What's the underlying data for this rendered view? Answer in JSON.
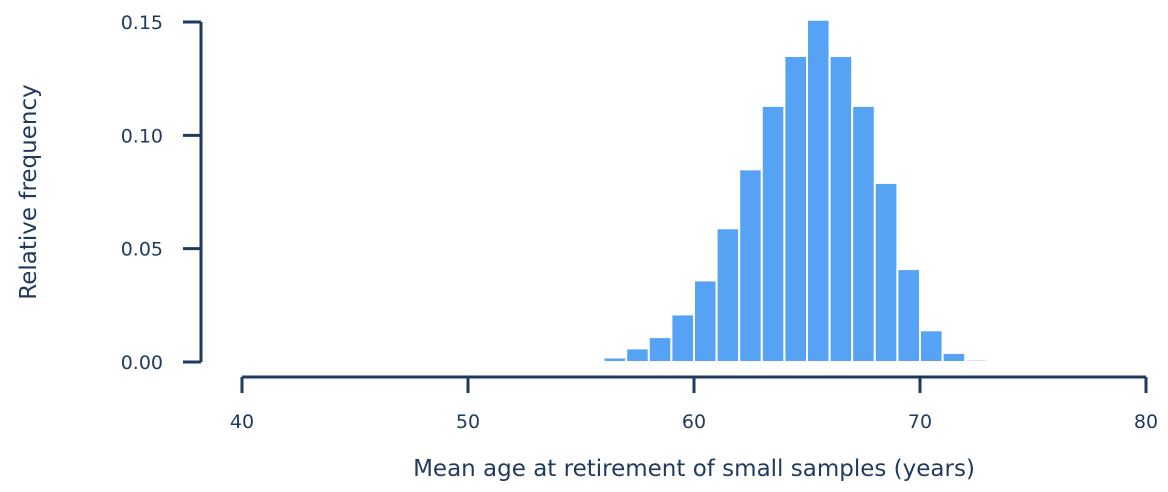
{
  "chart_data": {
    "type": "bar",
    "title": "",
    "xlabel": "Mean age at retirement of small samples (years)",
    "ylabel": "Relative frequency",
    "xlim": [
      40,
      80
    ],
    "ylim": [
      0,
      0.15
    ],
    "x_ticks": [
      "40",
      "50",
      "60",
      "70",
      "80"
    ],
    "y_ticks": [
      "0.00",
      "0.05",
      "0.10",
      "0.15"
    ],
    "bar_color": "#56a3f5",
    "axis_color": "#1f3a5f",
    "grid": false,
    "bins": [
      {
        "start": 53,
        "end": 54,
        "value": 0.0005
      },
      {
        "start": 54,
        "end": 55,
        "value": 0.0005
      },
      {
        "start": 55,
        "end": 56,
        "value": 0.0008
      },
      {
        "start": 56,
        "end": 57,
        "value": 0.002
      },
      {
        "start": 57,
        "end": 58,
        "value": 0.006
      },
      {
        "start": 58,
        "end": 59,
        "value": 0.011
      },
      {
        "start": 59,
        "end": 60,
        "value": 0.021
      },
      {
        "start": 60,
        "end": 61,
        "value": 0.036
      },
      {
        "start": 61,
        "end": 62,
        "value": 0.059
      },
      {
        "start": 62,
        "end": 63,
        "value": 0.085
      },
      {
        "start": 63,
        "end": 64,
        "value": 0.113
      },
      {
        "start": 64,
        "end": 65,
        "value": 0.135
      },
      {
        "start": 65,
        "end": 66,
        "value": 0.151
      },
      {
        "start": 66,
        "end": 67,
        "value": 0.135
      },
      {
        "start": 67,
        "end": 68,
        "value": 0.113
      },
      {
        "start": 68,
        "end": 69,
        "value": 0.079
      },
      {
        "start": 69,
        "end": 70,
        "value": 0.041
      },
      {
        "start": 70,
        "end": 71,
        "value": 0.014
      },
      {
        "start": 71,
        "end": 72,
        "value": 0.004
      },
      {
        "start": 72,
        "end": 73,
        "value": 0.001
      }
    ]
  }
}
